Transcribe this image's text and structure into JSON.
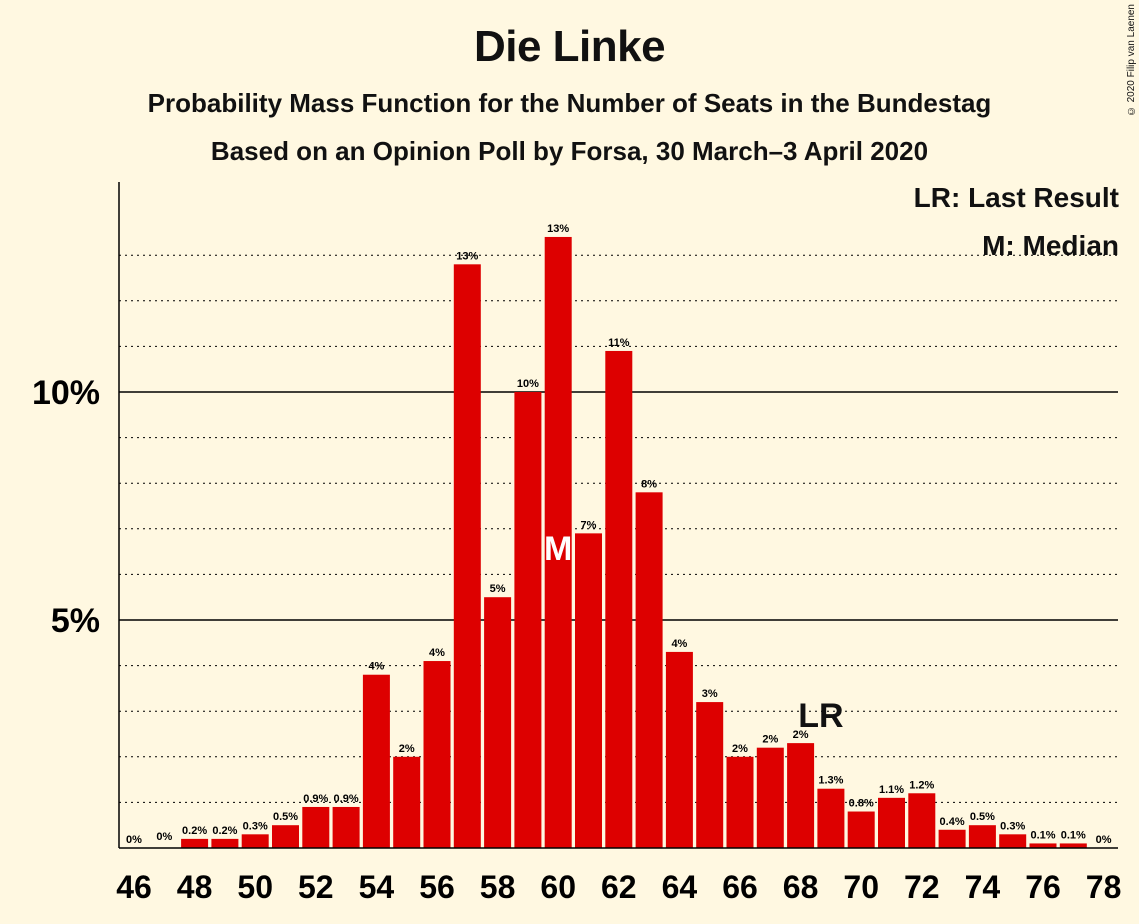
{
  "title": "Die Linke",
  "subtitle1": "Probability Mass Function for the Number of Seats in the Bundestag",
  "subtitle2": "Based on an Opinion Poll by Forsa, 30 March–3 April 2020",
  "copyright": "© 2020 Filip van Laenen",
  "legend": {
    "last_result": "LR: Last Result",
    "median": "M: Median"
  },
  "colors": {
    "bar": "#DD0000",
    "background": "#FFF8E1",
    "axis": "#000000"
  },
  "chart_data": {
    "type": "bar",
    "x": [
      46,
      47,
      48,
      49,
      50,
      51,
      52,
      53,
      54,
      55,
      56,
      57,
      58,
      59,
      60,
      61,
      62,
      63,
      64,
      65,
      66,
      67,
      68,
      69,
      70,
      71,
      72,
      73,
      74,
      75,
      76,
      77,
      78
    ],
    "values": [
      0,
      0,
      0.2,
      0.2,
      0.3,
      0.5,
      0.9,
      0.9,
      3.8,
      2.0,
      4.1,
      12.8,
      5.5,
      10.0,
      13.4,
      6.9,
      10.9,
      7.8,
      4.3,
      3.2,
      2.0,
      2.2,
      2.3,
      1.3,
      0.8,
      1.1,
      1.2,
      0.4,
      0.5,
      0.3,
      0.1,
      0.1,
      0
    ],
    "labels": [
      "0%",
      "",
      "0.2%",
      "0.2%",
      "0.3%",
      "0.5%",
      "0.9%",
      "0.9%",
      "4%",
      "2%",
      "4%",
      "13%",
      "5%",
      "10%",
      "13%",
      "7%",
      "11%",
      "8%",
      "4%",
      "3%",
      "2%",
      "2%",
      "2%",
      "1.3%",
      "0.8%",
      "1.1%",
      "1.2%",
      "0.4%",
      "0.5%",
      "0.3%",
      "0.1%",
      "0.1%",
      "0%"
    ],
    "extra_labels": [
      {
        "x": 47,
        "text": "0%"
      }
    ],
    "xticks": [
      46,
      48,
      50,
      52,
      54,
      56,
      58,
      60,
      62,
      64,
      66,
      68,
      70,
      72,
      74,
      76,
      78
    ],
    "yticks": [
      {
        "value": 5,
        "label": "5%"
      },
      {
        "value": 10,
        "label": "10%"
      }
    ],
    "ylim": [
      0,
      14.5
    ],
    "grid": "dotted lines every 1%, solid at 5% and 10%",
    "median": {
      "x": 60,
      "label": "M"
    },
    "last_result": {
      "x": 69,
      "label": "LR"
    },
    "xlabel": "",
    "ylabel": ""
  }
}
